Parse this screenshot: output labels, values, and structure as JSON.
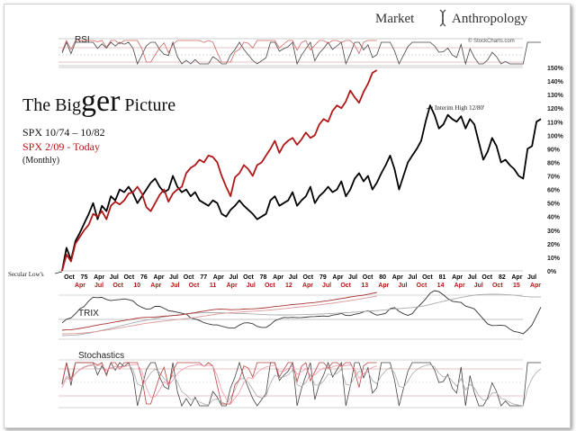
{
  "brand": {
    "word1": "Market",
    "word2": "Anthropology",
    "credit": "© StockCharts.com"
  },
  "title": {
    "prefix": "The Big",
    "big": "ger",
    "suffix": " Picture"
  },
  "legend": {
    "line1": "SPX 10/74 – 10/82",
    "line2": "SPX 2/09  - Today",
    "line3": "(Monthly)"
  },
  "annotations": {
    "low": "Secular Low's",
    "high": "Interim High 12/80'"
  },
  "panels": {
    "rsi": "RSI",
    "trix": "TRIX",
    "stoch": "Stochastics"
  },
  "colors": {
    "series1": "#000000",
    "series2": "#b01818",
    "brand": "#333333"
  },
  "chart_data": {
    "type": "line",
    "ylim": [
      0,
      150
    ],
    "yticks": [
      "0%",
      "10%",
      "20%",
      "30%",
      "40%",
      "50%",
      "60%",
      "70%",
      "80%",
      "90%",
      "100%",
      "110%",
      "120%",
      "130%",
      "140%",
      "150%"
    ],
    "xticks_top": [
      "Oct",
      "75",
      "Apr",
      "Jul",
      "Oct",
      "76",
      "Apr",
      "Jul",
      "Oct",
      "77",
      "Apr",
      "Jul",
      "Oct",
      "78",
      "Apr",
      "Jul",
      "Oct",
      "79",
      "Apr",
      "Jul",
      "Oct",
      "80",
      "Apr",
      "Jul",
      "Oct",
      "81",
      "Apr",
      "Jul",
      "Oct",
      "82",
      "Apr",
      "Jul"
    ],
    "xticks_bottom": [
      "Apr",
      "Jul",
      "Oct",
      "10",
      "Apr",
      "Jul",
      "Oct",
      "11",
      "Apr",
      "Jul",
      "Oct",
      "12",
      "Apr",
      "Jul",
      "Oct",
      "13",
      "Apr",
      "Jul",
      "Oct",
      "14",
      "Apr",
      "Jul",
      "Oct",
      "15",
      "Apr"
    ],
    "series": [
      {
        "name": "SPX 10/74 – 10/82",
        "color": "#000000",
        "values": [
          0,
          17,
          8,
          22,
          28,
          35,
          42,
          50,
          38,
          48,
          44,
          55,
          52,
          60,
          58,
          62,
          57,
          50,
          55,
          60,
          65,
          68,
          62,
          58,
          60,
          70,
          62,
          58,
          60,
          55,
          58,
          52,
          50,
          48,
          52,
          50,
          42,
          40,
          45,
          48,
          52,
          48,
          45,
          42,
          38,
          40,
          42,
          52,
          55,
          48,
          50,
          52,
          58,
          48,
          52,
          55,
          62,
          50,
          55,
          58,
          62,
          58,
          60,
          66,
          55,
          60,
          68,
          72,
          66,
          70,
          60,
          65,
          72,
          78,
          85,
          75,
          60,
          70,
          80,
          85,
          90,
          96,
          110,
          122,
          115,
          105,
          108,
          115,
          112,
          110,
          114,
          105,
          112,
          108,
          95,
          82,
          88,
          98,
          92,
          80,
          82,
          78,
          75,
          70,
          68,
          90,
          92,
          110,
          112
        ]
      },
      {
        "name": "SPX 2/09  - Today",
        "color": "#b01818",
        "values": [
          0,
          12,
          7,
          20,
          25,
          30,
          34,
          42,
          40,
          44,
          38,
          48,
          51,
          49,
          52,
          57,
          58,
          62,
          57,
          47,
          44,
          50,
          56,
          60,
          51,
          57,
          60,
          62,
          72,
          76,
          78,
          82,
          80,
          85,
          84,
          80,
          70,
          62,
          55,
          69,
          72,
          78,
          75,
          70,
          78,
          80,
          85,
          90,
          96,
          87,
          93,
          96,
          98,
          93,
          97,
          102,
          98,
          100,
          108,
          112,
          110,
          118,
          122,
          120,
          125,
          133,
          128,
          124,
          132,
          138,
          146,
          148
        ]
      }
    ]
  }
}
